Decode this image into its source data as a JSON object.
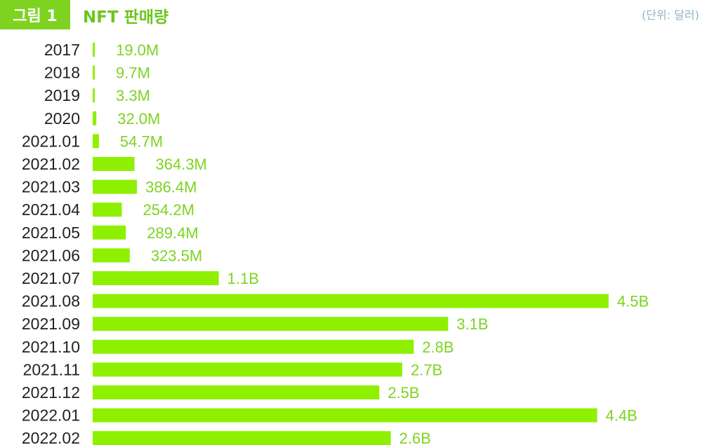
{
  "header": {
    "figure_label": "그림 1",
    "title": "NFT 판매량",
    "unit": "(단위: 달러)"
  },
  "colors": {
    "bar": "#8ef000",
    "accent": "#7ed321",
    "label": "#7ed321"
  },
  "chart_data": {
    "type": "bar",
    "orientation": "horizontal",
    "title": "NFT 판매량",
    "unit": "(단위: 달러)",
    "categories": [
      "2017",
      "2018",
      "2019",
      "2020",
      "2021.01",
      "2021.02",
      "2021.03",
      "2021.04",
      "2021.05",
      "2021.06",
      "2021.07",
      "2021.08",
      "2021.09",
      "2021.10",
      "2021.11",
      "2021.12",
      "2022.01",
      "2022.02"
    ],
    "values": [
      19000000,
      9700000,
      3300000,
      32000000,
      54700000,
      364300000,
      386400000,
      254200000,
      289400000,
      323500000,
      1100000000,
      4500000000,
      3100000000,
      2800000000,
      2700000000,
      2500000000,
      4400000000,
      2600000000
    ],
    "value_labels": [
      "19.0M",
      "9.7M",
      "3.3M",
      "32.0M",
      "54.7M",
      "364.3M",
      "386.4M",
      "254.2M",
      "289.4M",
      "323.5M",
      "1.1B",
      "4.5B",
      "3.1B",
      "2.8B",
      "2.7B",
      "2.5B",
      "4.4B",
      "2.6B"
    ],
    "xlim": [
      0,
      4500000000
    ],
    "grid": false,
    "legend": "none"
  }
}
